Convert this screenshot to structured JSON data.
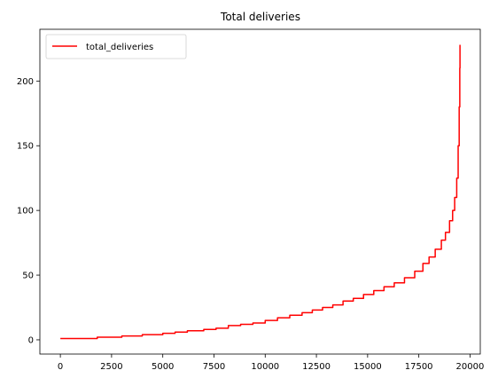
{
  "chart_data": {
    "type": "line",
    "title": "Total deliveries",
    "xlabel": "",
    "ylabel": "",
    "xlim": [
      -1000,
      20500
    ],
    "ylim": [
      -11,
      240
    ],
    "xticks": [
      0,
      2500,
      5000,
      7500,
      10000,
      12500,
      15000,
      17500,
      20000
    ],
    "xtick_labels": [
      "0",
      "2500",
      "5000",
      "7500",
      "10000",
      "12500",
      "15000",
      "17500",
      "20000"
    ],
    "yticks": [
      0,
      50,
      100,
      150,
      200
    ],
    "ytick_labels": [
      "0",
      "50",
      "100",
      "150",
      "200"
    ],
    "grid": false,
    "legend": {
      "placement": "upper-left",
      "entries": [
        "total_deliveries"
      ]
    },
    "series": [
      {
        "name": "total_deliveries",
        "color": "#ff0000",
        "style": "step",
        "x": [
          0,
          1800,
          3000,
          4000,
          5000,
          5600,
          6200,
          7000,
          7600,
          8200,
          8800,
          9400,
          10000,
          10600,
          11200,
          11800,
          12300,
          12800,
          13300,
          13800,
          14300,
          14800,
          15300,
          15800,
          16300,
          16800,
          17300,
          17700,
          18000,
          18300,
          18600,
          18800,
          19000,
          19150,
          19250,
          19350,
          19420,
          19470,
          19500,
          19510
        ],
        "values": [
          1,
          2,
          3,
          4,
          5,
          6,
          7,
          8,
          9,
          11,
          12,
          13,
          15,
          17,
          19,
          21,
          23,
          25,
          27,
          30,
          32,
          35,
          38,
          41,
          44,
          48,
          53,
          59,
          64,
          70,
          77,
          83,
          92,
          100,
          110,
          125,
          150,
          180,
          210,
          228
        ]
      }
    ]
  }
}
